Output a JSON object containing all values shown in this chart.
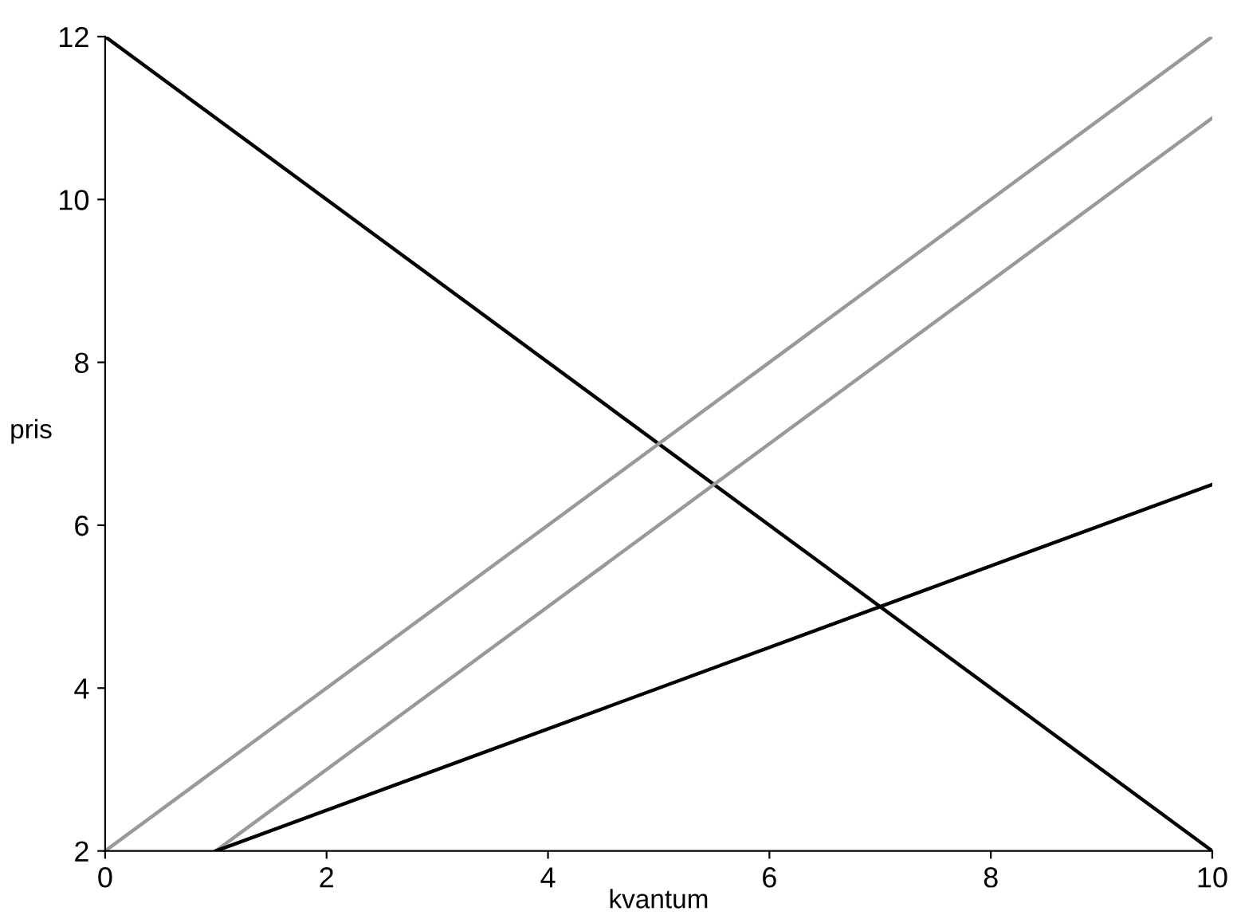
{
  "chart_data": {
    "type": "line",
    "xlabel": "kvantum",
    "ylabel": "pris",
    "series": [
      {
        "color": "#000000",
        "x": [
          0,
          10
        ],
        "values": [
          12,
          2
        ]
      },
      {
        "color": "#999999",
        "x": [
          0,
          10
        ],
        "values": [
          2,
          12
        ]
      },
      {
        "color": "#999999",
        "x": [
          1,
          10
        ],
        "values": [
          2,
          11
        ]
      },
      {
        "color": "#000000",
        "x": [
          1,
          10
        ],
        "values": [
          2,
          6.5
        ]
      }
    ],
    "xlim": [
      0,
      10
    ],
    "ylim": [
      2,
      12
    ],
    "xticks": [
      0,
      2,
      4,
      6,
      8,
      10
    ],
    "yticks": [
      2,
      4,
      6,
      8,
      10,
      12
    ],
    "grid": false,
    "legend": false
  }
}
